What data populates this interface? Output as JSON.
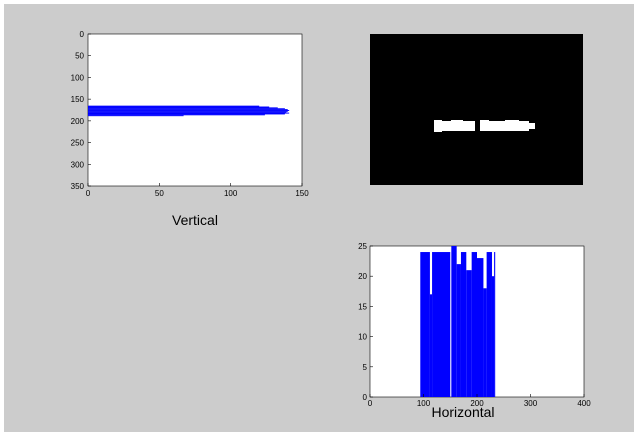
{
  "window": {
    "background": "#cccccc"
  },
  "captions": {
    "vertical": "Vertical",
    "horizontal": "Horizontal"
  },
  "chart_data": [
    {
      "type": "bar",
      "orientation": "horizontal",
      "caption": "Vertical",
      "xlim": [
        0,
        150
      ],
      "ylim": [
        0,
        350
      ],
      "y_reversed": true,
      "xticks": [
        "0",
        "50",
        "100",
        "150"
      ],
      "yticks": [
        "0",
        "50",
        "100",
        "150",
        "200",
        "250",
        "300",
        "350"
      ],
      "bar_color": "#0000ff",
      "profile": [
        [
          165,
          120
        ],
        [
          167,
          127
        ],
        [
          169,
          133
        ],
        [
          171,
          138
        ],
        [
          173,
          140
        ],
        [
          175,
          141
        ],
        [
          177,
          140
        ],
        [
          179,
          139
        ],
        [
          181,
          141
        ],
        [
          183,
          138
        ],
        [
          185,
          124
        ],
        [
          187,
          67
        ]
      ]
    },
    {
      "type": "image",
      "caption": "",
      "description_background": "#000000",
      "foreground": "#ffffff"
    },
    {
      "type": "bar",
      "orientation": "vertical",
      "caption": "Horizontal",
      "xlim": [
        0,
        400
      ],
      "ylim": [
        0,
        25
      ],
      "xticks": [
        "0",
        "100",
        "200",
        "300",
        "400"
      ],
      "yticks": [
        "0",
        "5",
        "10",
        "15",
        "20",
        "25"
      ],
      "bar_color": "#0000ff",
      "segments": [
        {
          "x": [
            94,
            112
          ],
          "value": 24
        },
        {
          "x": [
            112,
            116
          ],
          "value": 17
        },
        {
          "x": [
            116,
            150
          ],
          "value": 24
        },
        {
          "x": [
            152,
            162
          ],
          "value": 25
        },
        {
          "x": [
            162,
            170
          ],
          "value": 22
        },
        {
          "x": [
            170,
            180
          ],
          "value": 24
        },
        {
          "x": [
            180,
            190
          ],
          "value": 21
        },
        {
          "x": [
            190,
            200
          ],
          "value": 24
        },
        {
          "x": [
            200,
            212
          ],
          "value": 23
        },
        {
          "x": [
            212,
            218
          ],
          "value": 18
        },
        {
          "x": [
            218,
            228
          ],
          "value": 24
        },
        {
          "x": [
            228,
            232
          ],
          "value": 20
        },
        {
          "x": [
            232,
            234
          ],
          "value": 24
        }
      ]
    }
  ]
}
